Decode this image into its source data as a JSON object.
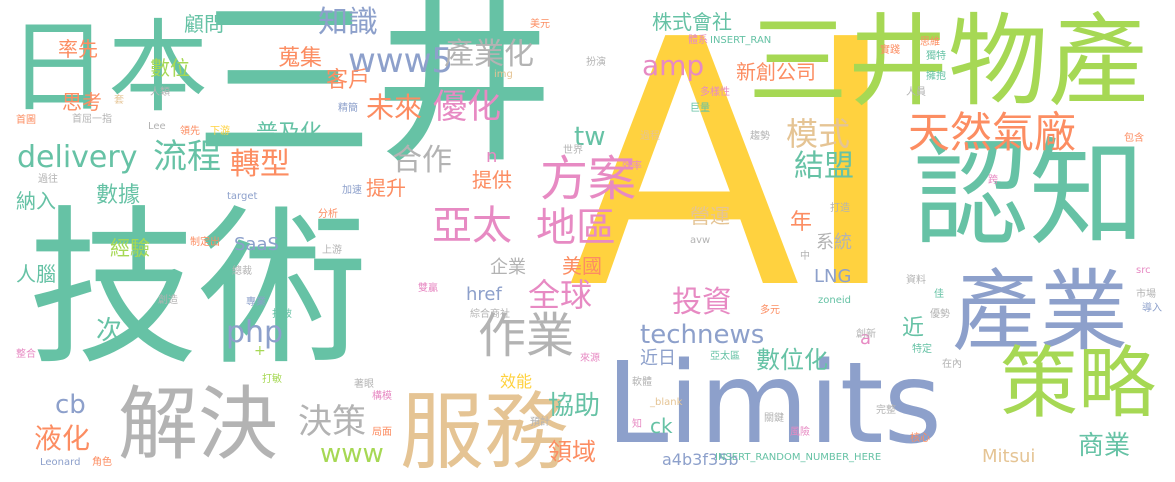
{
  "words": [
    {
      "text": "AI",
      "color": "#FFD23F"
    },
    {
      "text": "技術",
      "color": "#66C2A5"
    },
    {
      "text": "日本",
      "color": "#66C2A5"
    },
    {
      "text": "三井",
      "color": "#66C2A5"
    },
    {
      "text": "三井物產",
      "color": "#A6D854"
    },
    {
      "text": "Limits",
      "color": "#8DA0CB"
    },
    {
      "text": "認知",
      "color": "#66C2A5"
    },
    {
      "text": "產業",
      "color": "#8DA0CB"
    },
    {
      "text": "策略",
      "color": "#A6D854"
    },
    {
      "text": "解決",
      "color": "#B3B3B3"
    },
    {
      "text": "服務",
      "color": "#E5C494"
    },
    {
      "text": "天然氣廠",
      "color": "#FC8D62"
    },
    {
      "text": "方案",
      "color": "#E78AC3"
    },
    {
      "text": "亞太",
      "color": "#E78AC3"
    },
    {
      "text": "地區",
      "color": "#E78AC3"
    },
    {
      "text": "www5",
      "color": "#8DA0CB"
    },
    {
      "text": "知識",
      "color": "#8DA0CB"
    },
    {
      "text": "產業化",
      "color": "#B3B3B3"
    },
    {
      "text": "優化",
      "color": "#E78AC3"
    },
    {
      "text": "未來",
      "color": "#FC8D62"
    },
    {
      "text": "蒐集",
      "color": "#FC8D62"
    },
    {
      "text": "客戶",
      "color": "#FC8D62"
    },
    {
      "text": "數位",
      "color": "#A6D854"
    },
    {
      "text": "顧問",
      "color": "#66C2A5"
    },
    {
      "text": "率先",
      "color": "#FC8D62"
    },
    {
      "text": "思考",
      "color": "#FC8D62"
    },
    {
      "text": "delivery",
      "color": "#66C2A5"
    },
    {
      "text": "流程",
      "color": "#66C2A5"
    },
    {
      "text": "普及化",
      "color": "#66C2A5"
    },
    {
      "text": "轉型",
      "color": "#FC8D62"
    },
    {
      "text": "合作",
      "color": "#B3B3B3"
    },
    {
      "text": "提升",
      "color": "#FC8D62"
    },
    {
      "text": "模式",
      "color": "#E5C494"
    },
    {
      "text": "結盟",
      "color": "#66C2A5"
    },
    {
      "text": "amp",
      "color": "#E78AC3"
    },
    {
      "text": "新創公司",
      "color": "#FC8D62"
    },
    {
      "text": "株式會社",
      "color": "#66C2A5"
    },
    {
      "text": "tw",
      "color": "#66C2A5"
    },
    {
      "text": "全球",
      "color": "#E78AC3"
    },
    {
      "text": "投資",
      "color": "#E78AC3"
    },
    {
      "text": "作業",
      "color": "#B3B3B3"
    },
    {
      "text": "technews",
      "color": "#8DA0CB"
    },
    {
      "text": "php",
      "color": "#8DA0CB"
    },
    {
      "text": "次",
      "color": "#66C2A5"
    },
    {
      "text": "cb",
      "color": "#8DA0CB"
    },
    {
      "text": "液化",
      "color": "#FC8D62"
    },
    {
      "text": "決策",
      "color": "#B3B3B3"
    },
    {
      "text": "www",
      "color": "#A6D854"
    },
    {
      "text": "協助",
      "color": "#66C2A5"
    },
    {
      "text": "領域",
      "color": "#FC8D62"
    },
    {
      "text": "數位化",
      "color": "#66C2A5"
    },
    {
      "text": "近",
      "color": "#66C2A5"
    },
    {
      "text": "商業",
      "color": "#66C2A5"
    },
    {
      "text": "數據",
      "color": "#66C2A5"
    },
    {
      "text": "納入",
      "color": "#66C2A5"
    },
    {
      "text": "經驗",
      "color": "#A6D854"
    },
    {
      "text": "人腦",
      "color": "#66C2A5"
    },
    {
      "text": "SaaS",
      "color": "#8DA0CB"
    },
    {
      "text": "美國",
      "color": "#FC8D62"
    },
    {
      "text": "企業",
      "color": "#B3B3B3"
    },
    {
      "text": "href",
      "color": "#8DA0CB"
    },
    {
      "text": "LNG",
      "color": "#8DA0CB"
    },
    {
      "text": "系統",
      "color": "#B3B3B3"
    },
    {
      "text": "年",
      "color": "#FC8D62"
    },
    {
      "text": "提供",
      "color": "#FC8D62"
    },
    {
      "text": "營運",
      "color": "#E5C494"
    },
    {
      "text": "近日",
      "color": "#8DA0CB"
    },
    {
      "text": "a4b3f35b",
      "color": "#8DA0CB"
    },
    {
      "text": "ck",
      "color": "#66C2A5"
    },
    {
      "text": "Mitsui",
      "color": "#E5C494"
    },
    {
      "text": "效能",
      "color": "#FFD23F"
    },
    {
      "text": "n",
      "color": "#E78AC3"
    },
    {
      "text": "a",
      "color": "#E78AC3"
    },
    {
      "text": "首屈一指",
      "color": "#B3B3B3"
    },
    {
      "text": "人類",
      "color": "#B3B3B3"
    },
    {
      "text": "img",
      "color": "#E5C494"
    },
    {
      "text": "套",
      "color": "#E5C494"
    },
    {
      "text": "首圖",
      "color": "#FC8D62"
    },
    {
      "text": "精簡",
      "color": "#8DA0CB"
    },
    {
      "text": "Lee",
      "color": "#B3B3B3"
    },
    {
      "text": "領先",
      "color": "#FC8D62"
    },
    {
      "text": "下游",
      "color": "#FFD23F"
    },
    {
      "text": "過往",
      "color": "#B3B3B3"
    },
    {
      "text": "世界",
      "color": "#B3B3B3"
    },
    {
      "text": "加速",
      "color": "#8DA0CB"
    },
    {
      "text": "target",
      "color": "#8DA0CB"
    },
    {
      "text": "分析",
      "color": "#FC8D62"
    },
    {
      "text": "制定出",
      "color": "#FC8D62"
    },
    {
      "text": "上游",
      "color": "#B3B3B3"
    },
    {
      "text": "總裁",
      "color": "#B3B3B3"
    },
    {
      "text": "創造",
      "color": "#B3B3B3"
    },
    {
      "text": "專業",
      "color": "#8DA0CB"
    },
    {
      "text": "打破",
      "color": "#66C2A5"
    },
    {
      "text": "雙贏",
      "color": "#E78AC3"
    },
    {
      "text": "綜合商社",
      "color": "#B3B3B3"
    },
    {
      "text": "整合",
      "color": "#E78AC3"
    },
    {
      "text": "來源",
      "color": "#E78AC3"
    },
    {
      "text": "著眼",
      "color": "#B3B3B3"
    },
    {
      "text": "構模",
      "color": "#E78AC3"
    },
    {
      "text": "局面",
      "color": "#FC8D62"
    },
    {
      "text": "預計",
      "color": "#B3B3B3"
    },
    {
      "text": "Leonard",
      "color": "#8DA0CB"
    },
    {
      "text": "角色",
      "color": "#FC8D62"
    },
    {
      "text": "打敏",
      "color": "#A6D854"
    },
    {
      "text": "美元",
      "color": "#FC8D62"
    },
    {
      "text": "扮演",
      "color": "#B3B3B3"
    },
    {
      "text": "體系",
      "color": "#E78AC3"
    },
    {
      "text": "INSERT_RAN",
      "color": "#66C2A5"
    },
    {
      "text": "多樣性",
      "color": "#E78AC3"
    },
    {
      "text": "巨量",
      "color": "#66C2A5"
    },
    {
      "text": "過程",
      "color": "#E5C494"
    },
    {
      "text": "趨勢",
      "color": "#B3B3B3"
    },
    {
      "text": "效率",
      "color": "#E78AC3"
    },
    {
      "text": "打造",
      "color": "#B3B3B3"
    },
    {
      "text": "中",
      "color": "#B3B3B3"
    },
    {
      "text": "avw",
      "color": "#B3B3B3"
    },
    {
      "text": "多元",
      "color": "#FC8D62"
    },
    {
      "text": "zoneid",
      "color": "#66C2A5"
    },
    {
      "text": "亞太區",
      "color": "#66C2A5"
    },
    {
      "text": "軟體",
      "color": "#B3B3B3"
    },
    {
      "text": "_blank",
      "color": "#E5C494"
    },
    {
      "text": "關鍵",
      "color": "#B3B3B3"
    },
    {
      "text": "風險",
      "color": "#E78AC3"
    },
    {
      "text": "完整",
      "color": "#B3B3B3"
    },
    {
      "text": "創新",
      "color": "#B3B3B3"
    },
    {
      "text": "特定",
      "color": "#66C2A5"
    },
    {
      "text": "在內",
      "color": "#B3B3B3"
    },
    {
      "text": "核心",
      "color": "#FC8D62"
    },
    {
      "text": "INSERT_RANDOM_NUMBER_HERE",
      "color": "#66C2A5"
    },
    {
      "text": "思維",
      "color": "#FC8D62"
    },
    {
      "text": "獨特",
      "color": "#66C2A5"
    },
    {
      "text": "實踐",
      "color": "#FC8D62"
    },
    {
      "text": "擁抱",
      "color": "#66C2A5"
    },
    {
      "text": "人員",
      "color": "#B3B3B3"
    },
    {
      "text": "包含",
      "color": "#FC8D62"
    },
    {
      "text": "跨",
      "color": "#E78AC3"
    },
    {
      "text": "資料",
      "color": "#B3B3B3"
    },
    {
      "text": "src",
      "color": "#E78AC3"
    },
    {
      "text": "市場",
      "color": "#B3B3B3"
    },
    {
      "text": "導入",
      "color": "#8DA0CB"
    },
    {
      "text": "優勢",
      "color": "#B3B3B3"
    },
    {
      "text": "佳",
      "color": "#66C2A5"
    },
    {
      "text": "知",
      "color": "#E78AC3"
    },
    {
      "text": "+",
      "color": "#A6D854"
    }
  ]
}
